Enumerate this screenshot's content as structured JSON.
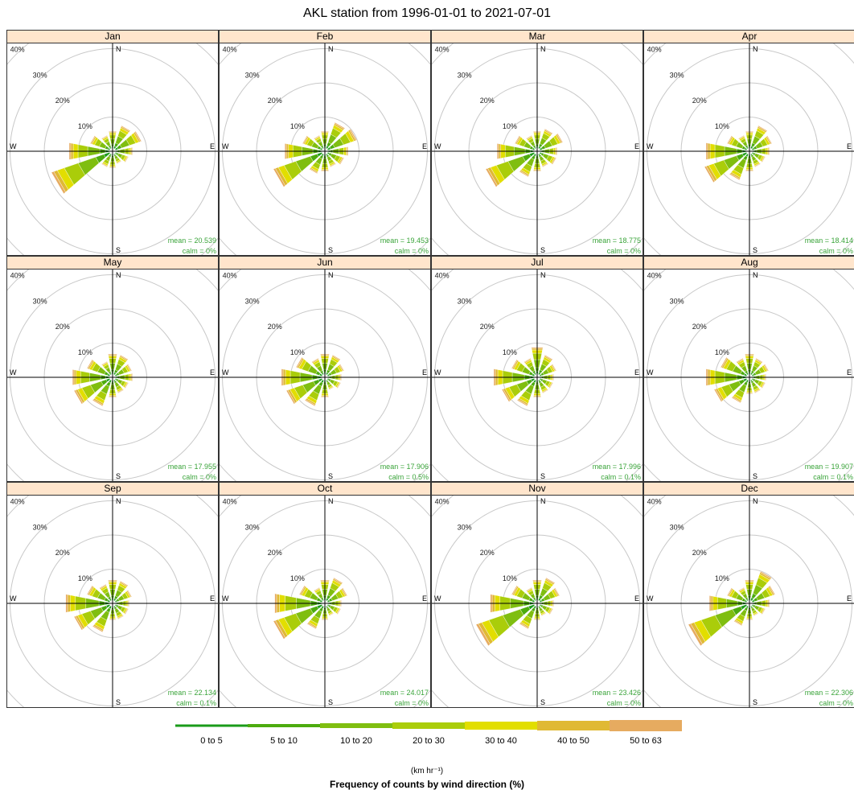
{
  "title": "AKL station from 1996-01-01 to 2021-07-01",
  "chart_data": {
    "type": "windrose",
    "station": "AKL",
    "period": [
      "1996-01-01",
      "2021-07-01"
    ],
    "directions_deg": [
      0,
      30,
      60,
      90,
      120,
      150,
      180,
      210,
      240,
      270,
      300,
      330
    ],
    "radial_axis_labels": [
      "10%",
      "20%",
      "30%",
      "40%"
    ],
    "radial_max_pct": 40,
    "cardinal_labels": [
      "N",
      "E",
      "S",
      "W"
    ],
    "speed_bins": [
      "0 to 5",
      "5 to 10",
      "10 to 20",
      "20 to 30",
      "30 to 40",
      "40 to 50",
      "50 to 63"
    ],
    "speed_colors": [
      "#1a9b1a",
      "#4cab0e",
      "#7fbe10",
      "#aacd0a",
      "#e2de00",
      "#e0b934",
      "#e6ab60"
    ],
    "units": "(km hr⁻¹)",
    "caption": "Frequency of counts by wind direction (%)",
    "panels": [
      {
        "month": "Jan",
        "mean": "mean = 20.539",
        "calm": "calm = 0%",
        "freq_pct": [
          5,
          7,
          8,
          5,
          4,
          3,
          4,
          4,
          18,
          12,
          6,
          4
        ]
      },
      {
        "month": "Feb",
        "mean": "mean = 19.453",
        "calm": "calm = 0%",
        "freq_pct": [
          5,
          8,
          9,
          6,
          5,
          4,
          5,
          6,
          15,
          11,
          6,
          4
        ]
      },
      {
        "month": "Mar",
        "mean": "mean = 18.775",
        "calm": "calm = 0%",
        "freq_pct": [
          5,
          6,
          7,
          5,
          5,
          4,
          5,
          7,
          15,
          11,
          6,
          4
        ]
      },
      {
        "month": "Apr",
        "mean": "mean = 18.414",
        "calm": "calm = 0%",
        "freq_pct": [
          5,
          7,
          6,
          5,
          4,
          4,
          5,
          8,
          13,
          12,
          6,
          4
        ]
      },
      {
        "month": "May",
        "mean": "mean = 17.955",
        "calm": "calm = 0%",
        "freq_pct": [
          6,
          6,
          5,
          5,
          4,
          4,
          5,
          8,
          11,
          11,
          7,
          4
        ]
      },
      {
        "month": "Jun",
        "mean": "mean = 17.906",
        "calm": "calm = 0.5%",
        "freq_pct": [
          6,
          6,
          5,
          4,
          4,
          3,
          5,
          8,
          11,
          12,
          8,
          5
        ]
      },
      {
        "month": "Jul",
        "mean": "mean = 17.996",
        "calm": "calm = 0.1%",
        "freq_pct": [
          8,
          6,
          5,
          4,
          4,
          4,
          5,
          8,
          10,
          12,
          7,
          5
        ]
      },
      {
        "month": "Aug",
        "mean": "mean = 19.907",
        "calm": "calm = 0.1%",
        "freq_pct": [
          6,
          5,
          5,
          4,
          4,
          4,
          4,
          7,
          10,
          12,
          8,
          5
        ]
      },
      {
        "month": "Sep",
        "mean": "mean = 22.134",
        "calm": "calm = 0.1%",
        "freq_pct": [
          6,
          6,
          5,
          4,
          4,
          4,
          4,
          8,
          11,
          13,
          7,
          5
        ]
      },
      {
        "month": "Oct",
        "mean": "mean = 24.017",
        "calm": "calm = 0%",
        "freq_pct": [
          6,
          7,
          6,
          4,
          4,
          3,
          4,
          7,
          15,
          14,
          7,
          4
        ]
      },
      {
        "month": "Nov",
        "mean": "mean = 23.426",
        "calm": "calm = 0%",
        "freq_pct": [
          6,
          7,
          6,
          4,
          4,
          3,
          4,
          7,
          18,
          13,
          7,
          4
        ]
      },
      {
        "month": "Dec",
        "mean": "mean = 22.306",
        "calm": "calm = 0%",
        "freq_pct": [
          6,
          9,
          7,
          5,
          4,
          3,
          4,
          6,
          18,
          11,
          6,
          4
        ]
      }
    ]
  }
}
